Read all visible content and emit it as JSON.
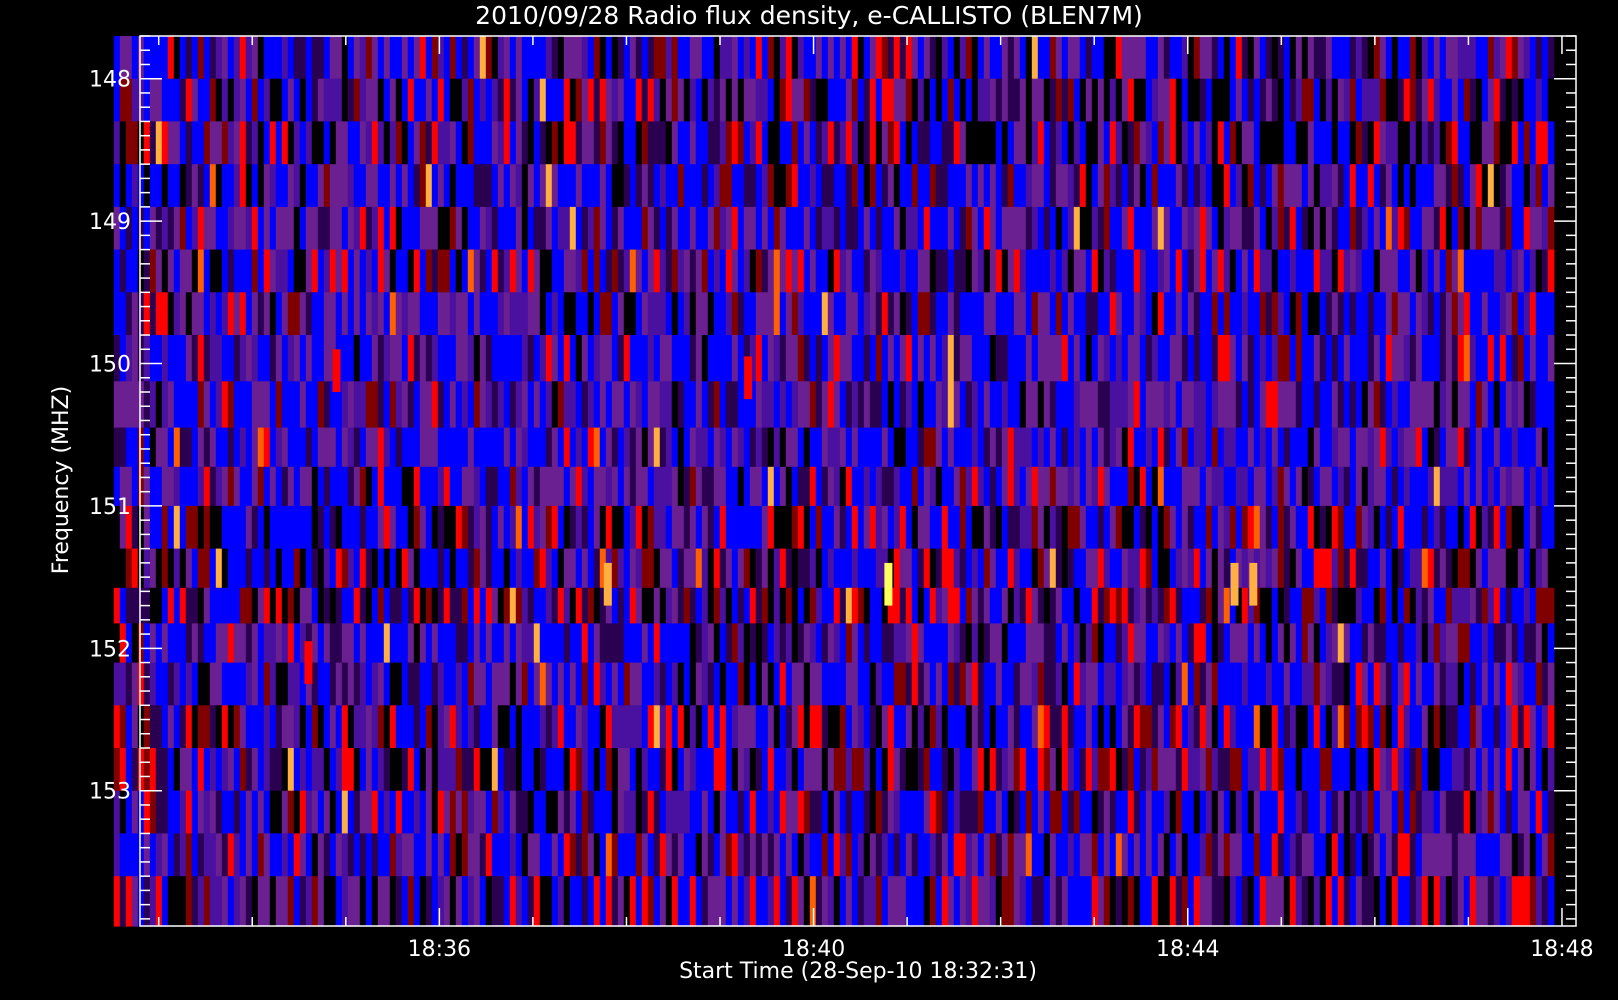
{
  "chart_data": {
    "type": "heatmap",
    "title": "2010/09/28  Radio flux density, e-CALLISTO (BLEN7M)",
    "xlabel": "Start Time (28-Sep-10 18:32:31)",
    "ylabel": "Frequency (MHZ)",
    "x_ticks": [
      "18:36",
      "18:40",
      "18:44",
      "18:48"
    ],
    "x_tick_minutes": [
      36,
      40,
      44,
      48
    ],
    "x_range_minutes": [
      32.8,
      48.15
    ],
    "data_x_range_minutes": [
      32.52,
      47.85
    ],
    "y_ticks": [
      "148",
      "149",
      "150",
      "151",
      "152",
      "153"
    ],
    "y_tick_values": [
      148,
      149,
      150,
      151,
      152,
      153
    ],
    "y_range_mhz": [
      147.7,
      153.95
    ],
    "frequency_channels_mhz": [
      147.85,
      148.15,
      148.45,
      148.75,
      149.05,
      149.35,
      149.65,
      149.95,
      150.3,
      150.6,
      150.85,
      151.15,
      151.45,
      151.7,
      151.95,
      152.25,
      152.55,
      152.85,
      153.15,
      153.45,
      153.75
    ],
    "channel_activity": [
      0.35,
      0.5,
      0.55,
      0.35,
      0.25,
      0.3,
      0.2,
      0.15,
      0.1,
      0.1,
      0.1,
      0.45,
      0.45,
      0.55,
      0.2,
      0.2,
      0.6,
      0.5,
      0.3,
      0.2,
      0.35
    ],
    "bright_bursts": [
      {
        "time_min": 40.8,
        "freq_mhz": 151.55,
        "level": "max"
      },
      {
        "time_min": 44.5,
        "freq_mhz": 151.55,
        "level": "high"
      },
      {
        "time_min": 44.7,
        "freq_mhz": 151.55,
        "level": "high"
      },
      {
        "time_min": 37.8,
        "freq_mhz": 151.55,
        "level": "high"
      },
      {
        "time_min": 34.9,
        "freq_mhz": 150.05,
        "level": "medium"
      },
      {
        "time_min": 39.3,
        "freq_mhz": 150.1,
        "level": "medium"
      },
      {
        "time_min": 34.6,
        "freq_mhz": 152.1,
        "level": "medium"
      }
    ],
    "colormap": [
      "#000000",
      "#2a0050",
      "#4a10a0",
      "#0000ff",
      "#6a2090",
      "#800000",
      "#ff0000",
      "#ff6000",
      "#ffb040",
      "#ffff60"
    ],
    "grid": false,
    "legend": "none"
  }
}
